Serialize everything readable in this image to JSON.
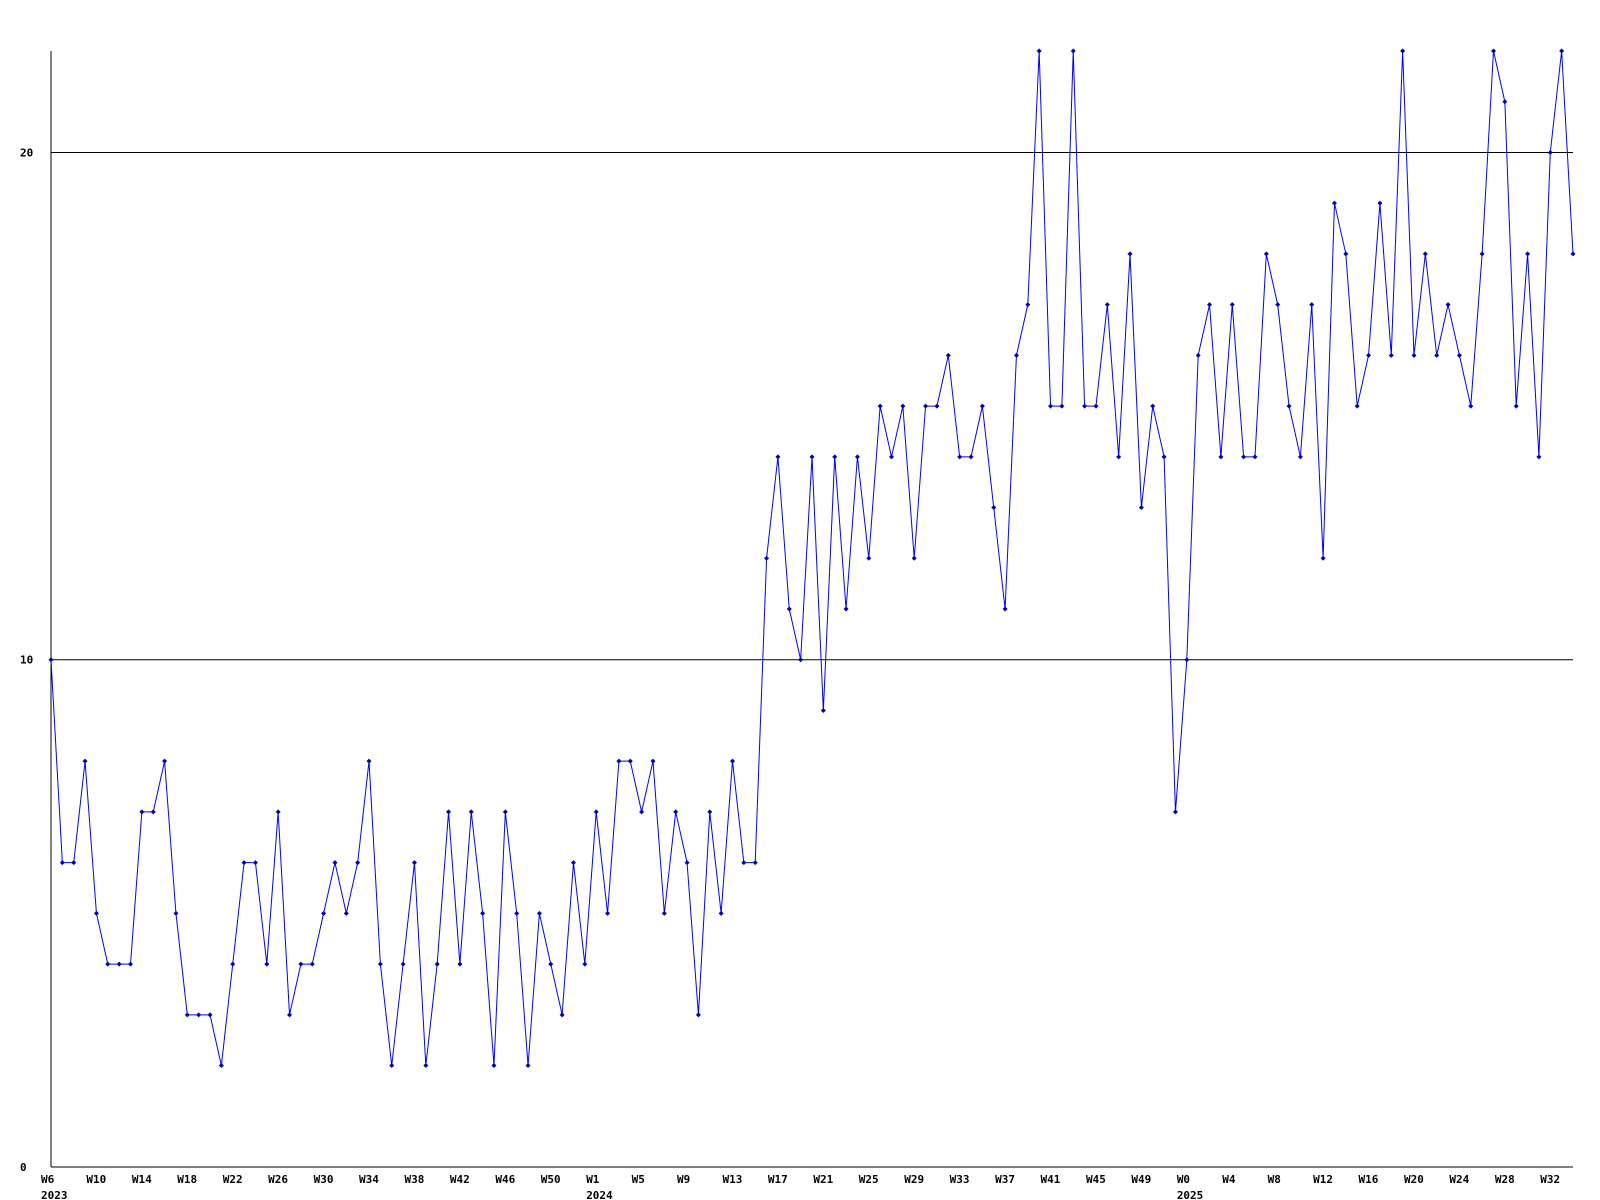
{
  "chart_data": {
    "type": "line",
    "categories": [
      "W6\n2023",
      null,
      null,
      null,
      "W10",
      null,
      null,
      null,
      "W14",
      null,
      null,
      null,
      "W18",
      null,
      null,
      null,
      "W22",
      null,
      null,
      null,
      "W26",
      null,
      null,
      null,
      "W30",
      null,
      null,
      null,
      "W34",
      null,
      null,
      null,
      "W38",
      null,
      null,
      null,
      "W42",
      null,
      null,
      null,
      "W46",
      null,
      null,
      null,
      "W50",
      null,
      null,
      null,
      "W1\n2024",
      null,
      null,
      null,
      "W5",
      null,
      null,
      null,
      "W9",
      null,
      null,
      null,
      "W13",
      null,
      null,
      null,
      "W17",
      null,
      null,
      null,
      "W21",
      null,
      null,
      null,
      "W25",
      null,
      null,
      null,
      "W29",
      null,
      null,
      null,
      "W33",
      null,
      null,
      null,
      "W37",
      null,
      null,
      null,
      "W41",
      null,
      null,
      null,
      "W45",
      null,
      null,
      null,
      "W49",
      null,
      null,
      null,
      "W0\n2025",
      null,
      null,
      null,
      "W4",
      null,
      null,
      null,
      "W8",
      null,
      null,
      null,
      "W12",
      null,
      null,
      null,
      "W16",
      null,
      null,
      null,
      "W20",
      null,
      null,
      null,
      "W24",
      null,
      null,
      null,
      "W28",
      null,
      null,
      null,
      "W32",
      null,
      null
    ],
    "values": [
      10,
      6,
      6,
      8,
      5,
      4,
      4,
      4,
      7,
      7,
      8,
      5,
      3,
      3,
      3,
      2,
      4,
      6,
      6,
      4,
      7,
      3,
      4,
      4,
      5,
      6,
      5,
      6,
      8,
      4,
      2,
      4,
      6,
      2,
      4,
      7,
      4,
      7,
      5,
      2,
      7,
      5,
      2,
      5,
      4,
      3,
      6,
      4,
      7,
      5,
      8,
      8,
      7,
      8,
      5,
      7,
      6,
      3,
      7,
      5,
      8,
      6,
      6,
      12,
      14,
      11,
      10,
      14,
      9,
      14,
      11,
      14,
      12,
      15,
      14,
      15,
      12,
      15,
      15,
      16,
      14,
      14,
      15,
      13,
      11,
      16,
      17,
      22,
      15,
      15,
      22,
      15,
      15,
      17,
      14,
      18,
      13,
      15,
      14,
      7,
      10,
      16,
      17,
      14,
      17,
      14,
      14,
      18,
      17,
      15,
      14,
      17,
      12,
      19,
      18,
      15,
      16,
      19,
      16,
      22,
      16,
      18,
      16,
      17,
      16,
      15,
      18,
      22,
      21,
      15,
      18,
      14,
      20,
      22,
      18
    ],
    "color": "#0000ff",
    "marker_color": "#0000b0",
    "ylim": [
      0,
      22
    ],
    "yticks": [
      0,
      10,
      20
    ],
    "grid": true
  }
}
